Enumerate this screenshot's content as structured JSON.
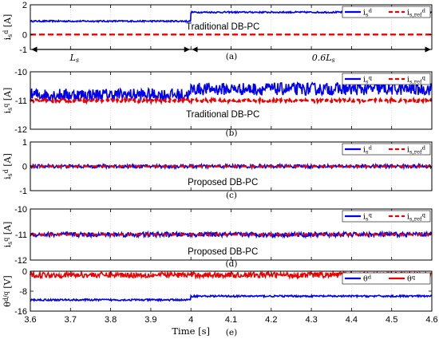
{
  "chart_data": [
    {
      "type": "line",
      "panel_label": "(a)",
      "annotation": "Traditional DB-PC",
      "ylabel": "i_s^d [A]",
      "ylim": [
        -1,
        2
      ],
      "yticks": [
        "2",
        "0",
        "-1"
      ],
      "yticks_values": [
        2,
        0,
        -1
      ],
      "x_range": [
        3.6,
        4.6
      ],
      "legend": [
        "i_s^d",
        "i_{s,ref}^d"
      ],
      "legend_position": "top-right",
      "series": [
        {
          "name": "i_s^d",
          "color": "#0000ee",
          "style": "solid",
          "segments": [
            {
              "x": [
                3.6,
                4.0
              ],
              "y": 0.9
            },
            {
              "x": [
                4.0,
                4.6
              ],
              "y": 1.5
            }
          ],
          "ripple": 0.05
        },
        {
          "name": "i_{s,ref}^d",
          "color": "#ee0000",
          "style": "dashed",
          "segments": [
            {
              "x": [
                3.6,
                4.6
              ],
              "y": 0
            }
          ],
          "ripple": 0
        }
      ],
      "extra_labels": {
        "left_interval": "L_s",
        "right_interval": "0.6L_s"
      }
    },
    {
      "type": "line",
      "panel_label": "(b)",
      "annotation": "Traditional DB-PC",
      "ylabel": "i_s^q [A]",
      "ylim": [
        -12,
        -10
      ],
      "yticks": [
        "-10",
        "-11",
        "-12"
      ],
      "yticks_values": [
        -10,
        -11,
        -12
      ],
      "x_range": [
        3.6,
        4.6
      ],
      "legend": [
        "i_s^q",
        "i_{s,ref}^q"
      ],
      "legend_position": "top-right",
      "series": [
        {
          "name": "i_s^q",
          "color": "#0000ee",
          "style": "solid",
          "segments": [
            {
              "x": [
                3.6,
                4.0
              ],
              "y": -10.8
            },
            {
              "x": [
                4.0,
                4.6
              ],
              "y": -10.6
            }
          ],
          "ripple": 0.22
        },
        {
          "name": "i_{s,ref}^q",
          "color": "#ee0000",
          "style": "dashed",
          "segments": [
            {
              "x": [
                3.6,
                4.6
              ],
              "y": -11.0
            }
          ],
          "ripple": 0.05
        }
      ]
    },
    {
      "type": "line",
      "panel_label": "(c)",
      "annotation": "Proposed DB-PC",
      "ylabel": "i_s^d [A]",
      "ylim": [
        -1,
        1
      ],
      "yticks": [
        "1",
        "0",
        "-1"
      ],
      "yticks_values": [
        1,
        0,
        -1
      ],
      "x_range": [
        3.6,
        4.6
      ],
      "legend": [
        "i_s^d",
        "i_{s,ref}^d"
      ],
      "legend_position": "top-right",
      "series": [
        {
          "name": "i_s^d",
          "color": "#0000ee",
          "style": "solid",
          "segments": [
            {
              "x": [
                3.6,
                4.6
              ],
              "y": 0
            }
          ],
          "ripple": 0.07
        },
        {
          "name": "i_{s,ref}^d",
          "color": "#ee0000",
          "style": "dashed",
          "segments": [
            {
              "x": [
                3.6,
                4.6
              ],
              "y": 0
            }
          ],
          "ripple": 0
        }
      ]
    },
    {
      "type": "line",
      "panel_label": "(d)",
      "annotation": "Proposed DB-PC",
      "ylabel": "i_s^q [A]",
      "ylim": [
        -12,
        -10
      ],
      "yticks": [
        "-10",
        "-11",
        "-12"
      ],
      "yticks_values": [
        -10,
        -11,
        -12
      ],
      "x_range": [
        3.6,
        4.6
      ],
      "legend": [
        "i_s^q",
        "i_{s,ref}^q"
      ],
      "legend_position": "top-right",
      "series": [
        {
          "name": "i_s^q",
          "color": "#0000ee",
          "style": "solid",
          "segments": [
            {
              "x": [
                3.6,
                4.6
              ],
              "y": -11.0
            }
          ],
          "ripple": 0.09
        },
        {
          "name": "i_{s,ref}^q",
          "color": "#ee0000",
          "style": "dashed",
          "segments": [
            {
              "x": [
                3.6,
                4.6
              ],
              "y": -11.0
            }
          ],
          "ripple": 0
        }
      ]
    },
    {
      "type": "line",
      "panel_label": "(e)",
      "ylabel": "θ^{d/q} [V]",
      "ylim": [
        -16,
        0
      ],
      "yticks": [
        "0",
        "-8",
        "-16"
      ],
      "yticks_values": [
        0,
        -8,
        -16
      ],
      "x_range": [
        3.6,
        4.6
      ],
      "xticks": [
        "3.6",
        "3.7",
        "3.8",
        "3.9",
        "4",
        "4.1",
        "4.2",
        "4.3",
        "4.4",
        "4.5",
        "4.6"
      ],
      "xticks_values": [
        3.6,
        3.7,
        3.8,
        3.9,
        4.0,
        4.1,
        4.2,
        4.3,
        4.4,
        4.5,
        4.6
      ],
      "xlabel": "Time [s]",
      "legend": [
        "θ^d",
        "θ^q"
      ],
      "legend_position": "top-right",
      "series": [
        {
          "name": "θ^d",
          "color": "#0000ee",
          "style": "solid",
          "segments": [
            {
              "x": [
                3.6,
                4.0
              ],
              "y": -11.5
            },
            {
              "x": [
                4.0,
                4.6
              ],
              "y": -10.0
            }
          ],
          "ripple": 0.35
        },
        {
          "name": "θ^q",
          "color": "#ee0000",
          "style": "solid",
          "segments": [
            {
              "x": [
                3.6,
                4.6
              ],
              "y": -1.5
            }
          ],
          "ripple": 1.1
        }
      ]
    }
  ]
}
